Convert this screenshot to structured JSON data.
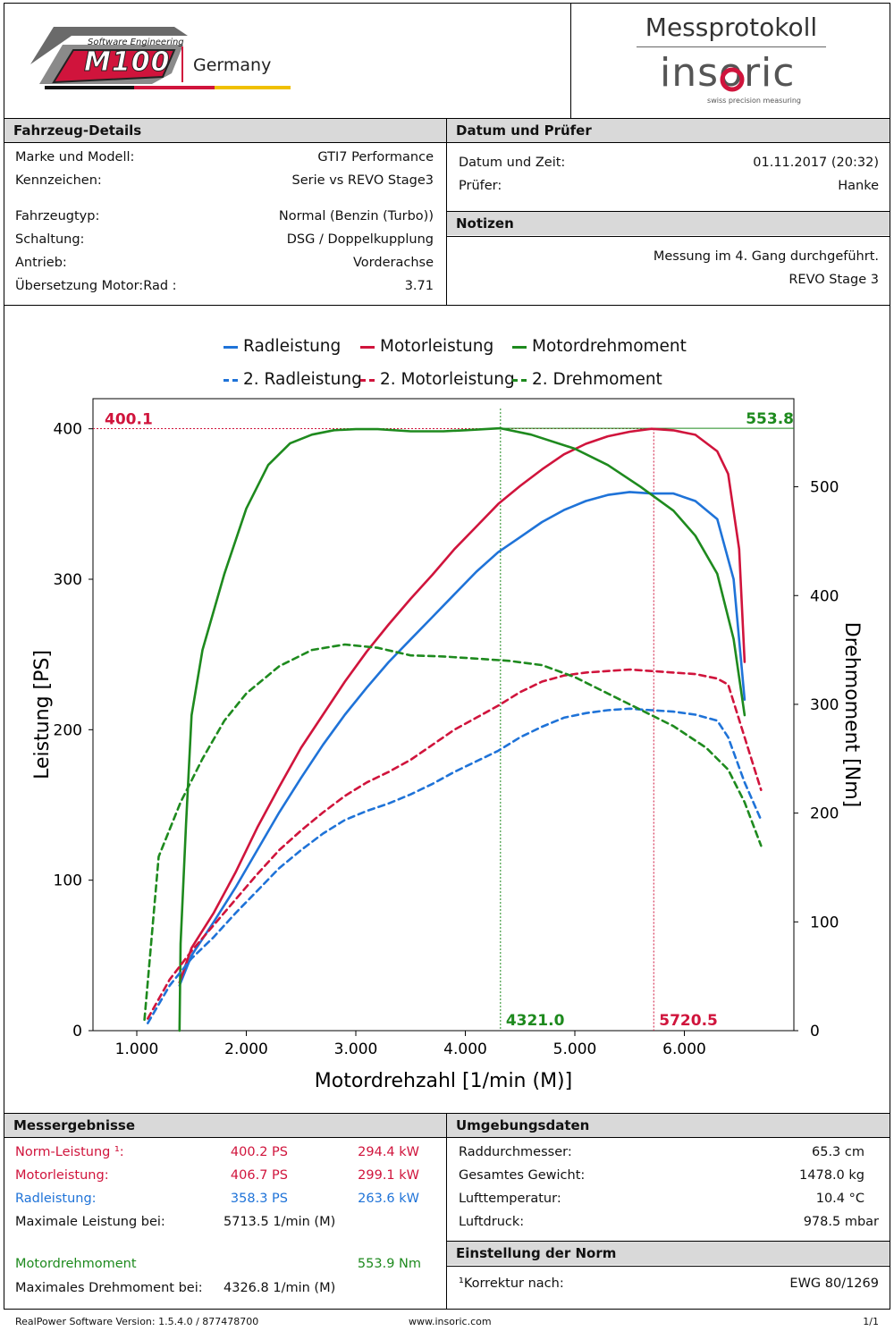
{
  "header": {
    "logo_line1": "Software Engineering",
    "logo_brand": "M100",
    "logo_country": "Germany",
    "title": "Messprotokoll",
    "brand": "insoric",
    "brand_tagline": "swiss precision measuring"
  },
  "vehicle": {
    "heading": "Fahrzeug-Details",
    "rows": [
      {
        "label": "Marke und Modell:",
        "value": "GTI7 Performance"
      },
      {
        "label": "Kennzeichen:",
        "value": "Serie vs REVO Stage3"
      },
      {
        "label": "Fahrzeugtyp:",
        "value": "Normal (Benzin (Turbo))"
      },
      {
        "label": "Schaltung:",
        "value": "DSG / Doppelkupplung"
      },
      {
        "label": "Antrieb:",
        "value": "Vorderachse"
      },
      {
        "label": "Übersetzung Motor:Rad :",
        "value": "3.71"
      }
    ]
  },
  "date": {
    "heading": "Datum und Prüfer",
    "rows": [
      {
        "label": "Datum und Zeit:",
        "value": "01.11.2017 (20:32)"
      },
      {
        "label": "Prüfer:",
        "value": "Hanke"
      }
    ]
  },
  "notes": {
    "heading": "Notizen",
    "line1": "Messung im 4. Gang durchgeführt.",
    "line2": "REVO Stage 3"
  },
  "results": {
    "heading": "Messergebnisse",
    "norm": {
      "label": "Norm-Leistung ¹:",
      "ps": "400.2 PS",
      "kw": "294.4 kW"
    },
    "motor": {
      "label": "Motorleistung:",
      "ps": "406.7 PS",
      "kw": "299.1 kW"
    },
    "wheel": {
      "label": "Radleistung:",
      "ps": "358.3 PS",
      "kw": "263.6 kW"
    },
    "maxpower": {
      "label": "Maximale Leistung bei:",
      "value": "5713.5 1/min (M)"
    },
    "torque": {
      "label": "Motordrehmoment",
      "value": "553.9 Nm"
    },
    "maxtorque": {
      "label": "Maximales Drehmoment bei:",
      "value": "4326.8 1/min (M)"
    }
  },
  "environment": {
    "heading": "Umgebungsdaten",
    "rows": [
      {
        "label": "Raddurchmesser:",
        "value": "65.3 cm"
      },
      {
        "label": "Gesamtes Gewicht:",
        "value": "1478.0 kg"
      },
      {
        "label": "Lufttemperatur:",
        "value": "10.4 °C"
      },
      {
        "label": "Luftdruck:",
        "value": "978.5 mbar"
      }
    ]
  },
  "norm": {
    "heading": "Einstellung der Norm",
    "label": "¹Korrektur nach:",
    "value": "EWG 80/1269"
  },
  "footer": {
    "version": "RealPower Software Version: 1.5.4.0 / 877478700",
    "url": "www.insoric.com",
    "page": "1/1"
  },
  "colors": {
    "wheel": "#1f73d8",
    "motor": "#d0143c",
    "torque": "#1e8a1e"
  },
  "chart_data": {
    "type": "line",
    "xlabel": "Motordrehzahl [1/min (M)]",
    "ylabel": "Leistung [PS]",
    "y2label": "Drehmoment [Nm]",
    "xlim": [
      600,
      7000
    ],
    "ylim": [
      0,
      420
    ],
    "y2lim": [
      0,
      581
    ],
    "xticks": [
      1000,
      2000,
      3000,
      4000,
      5000,
      6000
    ],
    "xtick_labels": [
      "1.000",
      "2.000",
      "3.000",
      "4.000",
      "5.000",
      "6.000"
    ],
    "yticks": [
      0,
      100,
      200,
      300,
      400
    ],
    "y2ticks": [
      0,
      100,
      200,
      300,
      400,
      500
    ],
    "grid": false,
    "legend_position": "top",
    "markers": {
      "max_power_value": "400.1",
      "max_torque_value": "553.8",
      "max_torque_rpm": "4321.0",
      "max_power_rpm": "5720.5",
      "power_y": 400.1,
      "torque_y": 553.8,
      "torque_rpm": 4321.0,
      "power_rpm": 5720.5
    },
    "series": [
      {
        "name": "Radleistung",
        "axis": "left",
        "style": "solid",
        "color": "#1f73d8",
        "x": [
          1390,
          1500,
          1700,
          1900,
          2100,
          2300,
          2500,
          2700,
          2900,
          3100,
          3300,
          3500,
          3700,
          3900,
          4100,
          4300,
          4500,
          4700,
          4900,
          5100,
          5300,
          5500,
          5700,
          5900,
          6100,
          6300,
          6450,
          6550
        ],
        "y": [
          30,
          50,
          72,
          95,
          120,
          145,
          168,
          190,
          210,
          228,
          245,
          260,
          275,
          290,
          305,
          318,
          328,
          338,
          346,
          352,
          356,
          358,
          357,
          357,
          352,
          340,
          300,
          220
        ]
      },
      {
        "name": "Motorleistung",
        "axis": "left",
        "style": "solid",
        "color": "#d0143c",
        "x": [
          1390,
          1500,
          1700,
          1900,
          2100,
          2300,
          2500,
          2700,
          2900,
          3100,
          3300,
          3500,
          3700,
          3900,
          4100,
          4300,
          4500,
          4700,
          4900,
          5100,
          5300,
          5500,
          5700,
          5900,
          6100,
          6300,
          6400,
          6500,
          6550
        ],
        "y": [
          32,
          55,
          78,
          105,
          135,
          162,
          188,
          210,
          232,
          252,
          270,
          287,
          303,
          320,
          335,
          350,
          362,
          373,
          383,
          390,
          395,
          398,
          400,
          399,
          396,
          385,
          370,
          320,
          245
        ]
      },
      {
        "name": "Motordrehmoment",
        "axis": "right",
        "style": "solid",
        "color": "#1e8a1e",
        "x": [
          1390,
          1400,
          1450,
          1500,
          1600,
          1800,
          2000,
          2200,
          2400,
          2600,
          2800,
          3000,
          3200,
          3500,
          3800,
          4000,
          4321,
          4600,
          5000,
          5300,
          5600,
          5900,
          6100,
          6300,
          6450,
          6550
        ],
        "y": [
          0,
          80,
          190,
          290,
          350,
          420,
          480,
          520,
          540,
          548,
          552,
          553,
          553,
          551,
          551,
          552,
          553.8,
          548,
          535,
          520,
          500,
          478,
          455,
          420,
          360,
          290
        ]
      },
      {
        "name": "2. Radleistung",
        "axis": "left",
        "style": "dashed",
        "color": "#1f73d8",
        "x": [
          1100,
          1300,
          1500,
          1700,
          1900,
          2100,
          2300,
          2500,
          2700,
          2900,
          3100,
          3300,
          3500,
          3700,
          3900,
          4100,
          4300,
          4500,
          4700,
          4900,
          5100,
          5300,
          5500,
          5700,
          5900,
          6100,
          6300,
          6400,
          6550,
          6700
        ],
        "y": [
          5,
          30,
          48,
          62,
          78,
          93,
          108,
          120,
          131,
          140,
          146,
          151,
          157,
          164,
          172,
          179,
          186,
          195,
          202,
          208,
          211,
          213,
          214,
          213,
          212,
          210,
          206,
          195,
          165,
          140
        ]
      },
      {
        "name": "2. Motorleistung",
        "axis": "left",
        "style": "dashed",
        "color": "#d0143c",
        "x": [
          1100,
          1300,
          1500,
          1700,
          1900,
          2100,
          2300,
          2500,
          2700,
          2900,
          3100,
          3300,
          3500,
          3700,
          3900,
          4100,
          4300,
          4500,
          4700,
          4900,
          5100,
          5300,
          5500,
          5700,
          5900,
          6100,
          6300,
          6400,
          6550,
          6700
        ],
        "y": [
          8,
          34,
          53,
          70,
          87,
          104,
          120,
          133,
          145,
          156,
          165,
          172,
          180,
          190,
          200,
          208,
          216,
          225,
          232,
          236,
          238,
          239,
          240,
          239,
          238,
          237,
          234,
          230,
          195,
          160
        ]
      },
      {
        "name": "2. Drehmoment",
        "axis": "right",
        "style": "dashed",
        "color": "#1e8a1e",
        "x": [
          1070,
          1200,
          1400,
          1600,
          1800,
          2000,
          2300,
          2600,
          2900,
          3200,
          3500,
          3800,
          4100,
          4400,
          4700,
          5000,
          5300,
          5600,
          5900,
          6200,
          6400,
          6550,
          6700
        ],
        "y": [
          10,
          160,
          210,
          250,
          285,
          310,
          335,
          350,
          355,
          352,
          345,
          344,
          342,
          340,
          336,
          325,
          310,
          295,
          280,
          260,
          240,
          210,
          170
        ]
      }
    ]
  }
}
